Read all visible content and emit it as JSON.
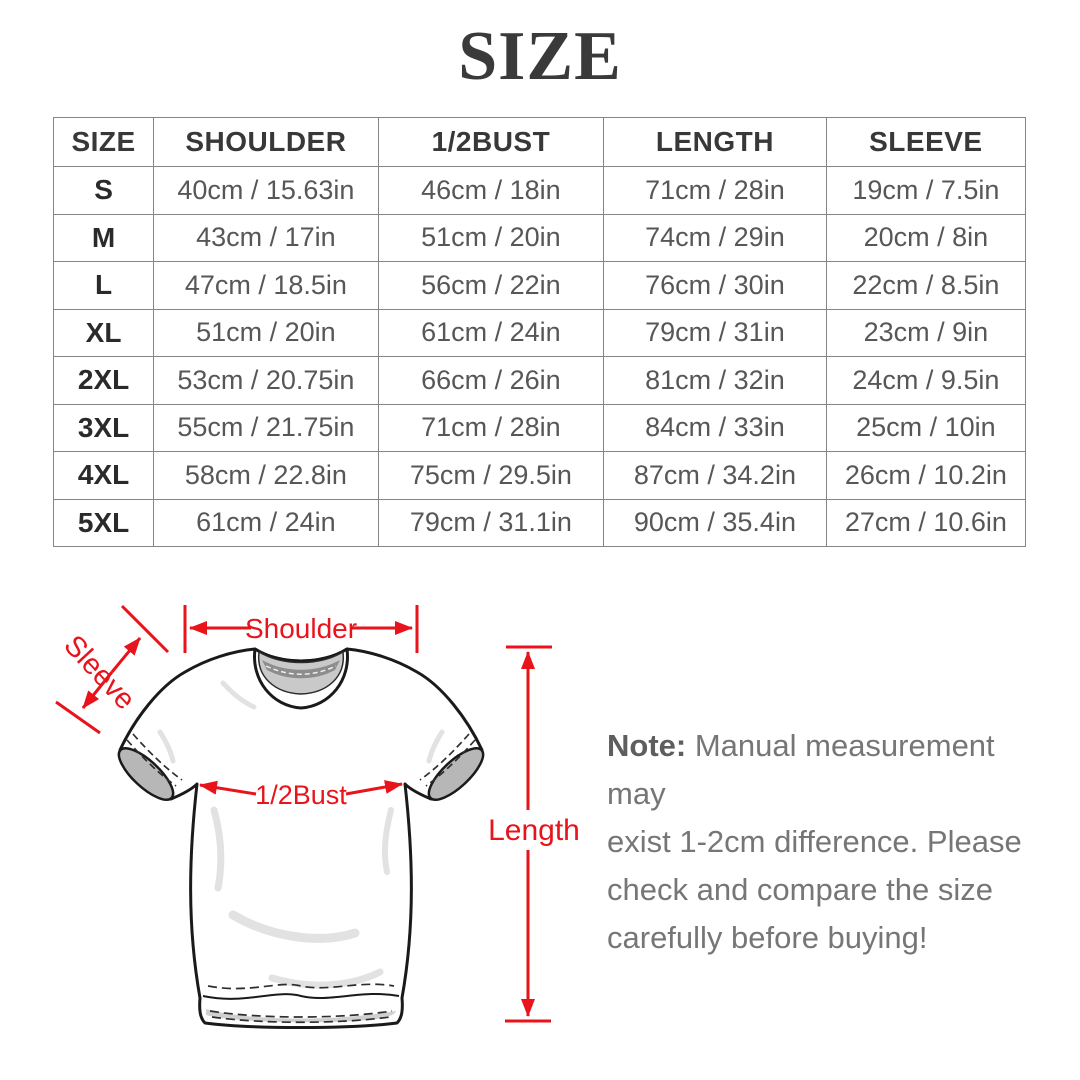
{
  "title": "SIZE",
  "colors": {
    "accent_red": "#e8131b",
    "table_border": "#858585",
    "header_text": "#383838",
    "cell_text": "#575757",
    "note_text": "#767676",
    "shirt_outline": "#1a1a1a",
    "collar_gray": "#c9c9c9",
    "cuff_gray": "#b7b7b7"
  },
  "table": {
    "columns": [
      "SIZE",
      "SHOULDER",
      "1/2BUST",
      "LENGTH",
      "SLEEVE"
    ],
    "rows": [
      [
        "S",
        "40cm / 15.63in",
        "46cm / 18in",
        "71cm / 28in",
        "19cm / 7.5in"
      ],
      [
        "M",
        "43cm / 17in",
        "51cm / 20in",
        "74cm / 29in",
        "20cm / 8in"
      ],
      [
        "L",
        "47cm / 18.5in",
        "56cm / 22in",
        "76cm / 30in",
        "22cm / 8.5in"
      ],
      [
        "XL",
        "51cm / 20in",
        "61cm / 24in",
        "79cm / 31in",
        "23cm / 9in"
      ],
      [
        "2XL",
        "53cm / 20.75in",
        "66cm / 26in",
        "81cm / 32in",
        "24cm / 9.5in"
      ],
      [
        "3XL",
        "55cm / 21.75in",
        "71cm / 28in",
        "84cm / 33in",
        "25cm / 10in"
      ],
      [
        "4XL",
        "58cm / 22.8in",
        "75cm / 29.5in",
        "87cm / 34.2in",
        "26cm / 10.2in"
      ],
      [
        "5XL",
        "61cm / 24in",
        "79cm / 31.1in",
        "90cm / 35.4in",
        "27cm / 10.6in"
      ]
    ]
  },
  "diagram": {
    "labels": {
      "shoulder": "Shoulder",
      "sleeve": "Sleeve",
      "bust": "1/2Bust",
      "length": "Length"
    }
  },
  "note": {
    "prefix": "Note:",
    "lines": [
      "Manual measurement may",
      "exist 1-2cm difference. Please",
      "check and compare the size",
      "carefully before buying!"
    ]
  }
}
